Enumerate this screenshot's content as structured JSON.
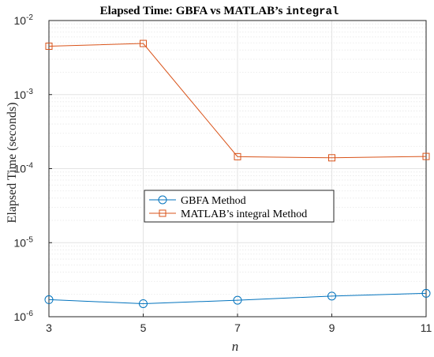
{
  "chart_data": {
    "type": "line",
    "title_main": "Elapsed Time: GBFA vs MATLAB’s ",
    "title_code": "integral",
    "xlabel": "n",
    "ylabel": "Elapsed Time (seconds)",
    "x": [
      3,
      5,
      7,
      9,
      11
    ],
    "xlim": [
      3,
      11
    ],
    "xticks": [
      "3",
      "5",
      "7",
      "9",
      "11"
    ],
    "yscale": "log",
    "ylim": [
      1e-06,
      0.01
    ],
    "yticks": [
      {
        "base": "10",
        "exp": "-6",
        "value": 1e-06
      },
      {
        "base": "10",
        "exp": "-5",
        "value": 1e-05
      },
      {
        "base": "10",
        "exp": "-4",
        "value": 0.0001
      },
      {
        "base": "10",
        "exp": "-3",
        "value": 0.001
      },
      {
        "base": "10",
        "exp": "-2",
        "value": 0.01
      }
    ],
    "grid": true,
    "legend_position": "center-left",
    "series": [
      {
        "name": "GBFA Method",
        "marker": "circle",
        "color": "#0072BD",
        "values": [
          1.7e-06,
          1.5e-06,
          1.67e-06,
          1.9e-06,
          2.07e-06
        ]
      },
      {
        "name": "MATLAB’s integral Method",
        "marker": "square",
        "color": "#D95319",
        "values": [
          0.0045,
          0.0049,
          0.000145,
          0.00014,
          0.000146
        ]
      }
    ]
  }
}
